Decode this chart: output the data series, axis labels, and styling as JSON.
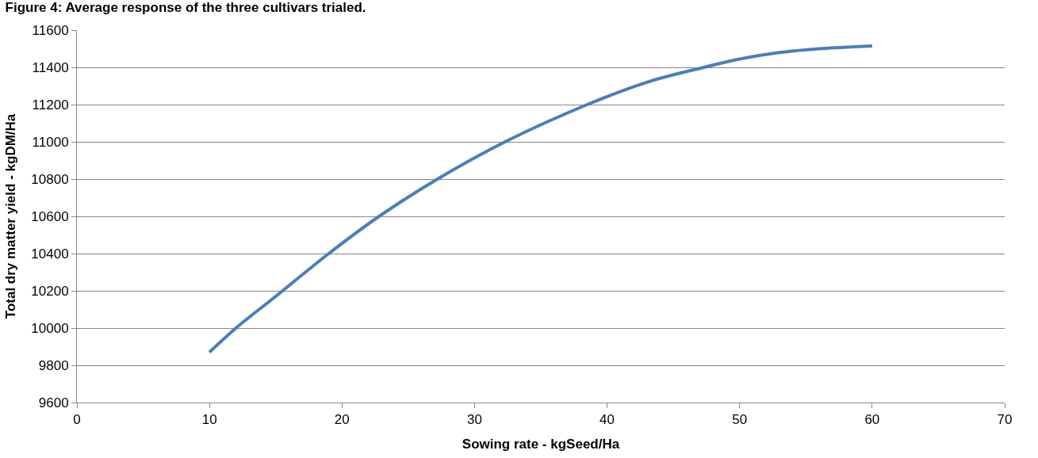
{
  "chart_data": {
    "type": "line",
    "title": "Figure 4: Average response of the three cultivars trialed.",
    "xlabel": "Sowing rate - kgSeed/Ha",
    "ylabel": "Total dry matter yield - kgDM/Ha",
    "x": [
      10,
      12,
      15,
      19,
      22.8,
      27.2,
      32.3,
      38.5,
      43,
      47.3,
      50,
      53,
      56,
      60
    ],
    "series": [
      {
        "color": "#4a7ebb",
        "values": [
          9870,
          10000,
          10170,
          10400,
          10600,
          10800,
          11000,
          11200,
          11320,
          11400,
          11445,
          11480,
          11500,
          11515
        ]
      }
    ],
    "xlim": [
      0,
      70
    ],
    "xticks": [
      0,
      10,
      20,
      30,
      40,
      50,
      60,
      70
    ],
    "ylim": [
      9600,
      11600
    ],
    "yticks": [
      9600,
      9800,
      10000,
      10200,
      10400,
      10600,
      10800,
      11000,
      11200,
      11400,
      11600
    ],
    "grid": "y",
    "legend": false,
    "marker": "none",
    "line_style": "solid"
  }
}
